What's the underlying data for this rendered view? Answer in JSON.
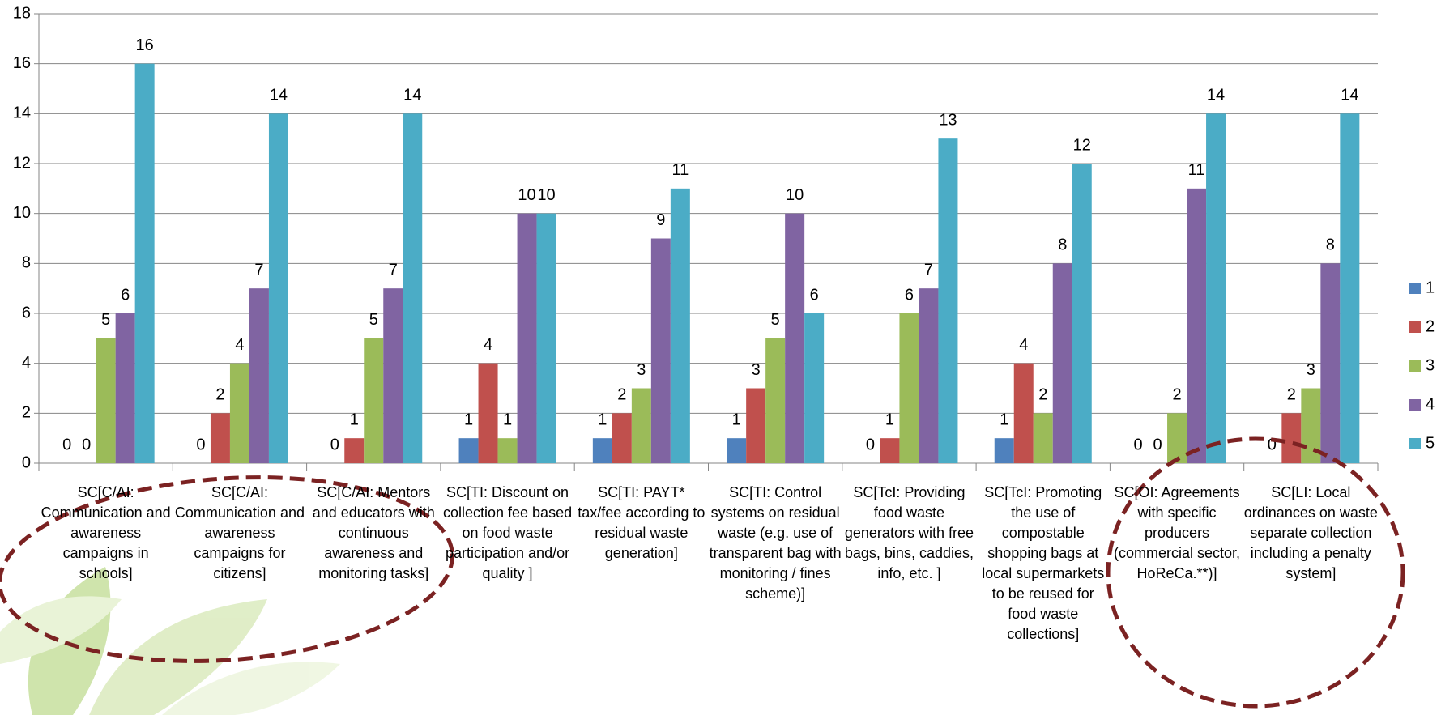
{
  "chart_data": {
    "type": "bar",
    "categories": [
      "SC[C/AI: Communication and awareness campaigns in schools]",
      "SC[C/AI: Communication and awareness campaigns for citizens]",
      "SC[C/AI: Mentors and educators with continuous awareness and monitoring tasks]",
      "SC[TI: Discount on collection fee based on food waste participation and/or quality ]",
      "SC[TI: PAYT* tax/fee according to residual waste generation]",
      "SC[TI: Control systems on residual waste (e.g. use of transparent bag with monitoring / fines scheme)]",
      "SC[TcI: Providing food waste generators with free bags, bins, caddies, info, etc. ]",
      "SC[TcI: Promoting the use of compostable shopping bags at local supermarkets to be reused for food waste collections]",
      "SC[OI: Agreements with specific producers (commercial sector, HoReCa.**)]",
      "SC[LI: Local ordinances on waste separate collection including a penalty system]"
    ],
    "series": [
      {
        "name": "1",
        "color": "#4f81bd",
        "values": [
          0,
          0,
          0,
          1,
          1,
          1,
          0,
          1,
          0,
          0
        ]
      },
      {
        "name": "2",
        "color": "#c0504d",
        "values": [
          0,
          2,
          1,
          4,
          2,
          3,
          1,
          4,
          0,
          2
        ]
      },
      {
        "name": "3",
        "color": "#9bbb59",
        "values": [
          5,
          4,
          5,
          1,
          3,
          5,
          6,
          2,
          2,
          3
        ]
      },
      {
        "name": "4",
        "color": "#8064a2",
        "values": [
          6,
          7,
          7,
          10,
          9,
          10,
          7,
          8,
          11,
          8
        ]
      },
      {
        "name": "5",
        "color": "#4bacc6",
        "values": [
          16,
          14,
          14,
          10,
          11,
          6,
          13,
          12,
          14,
          14
        ]
      }
    ],
    "ylim": [
      0,
      18
    ],
    "yticks": [
      0,
      2,
      4,
      6,
      8,
      10,
      12,
      14,
      16,
      18
    ],
    "grid": true,
    "legend": "right"
  }
}
